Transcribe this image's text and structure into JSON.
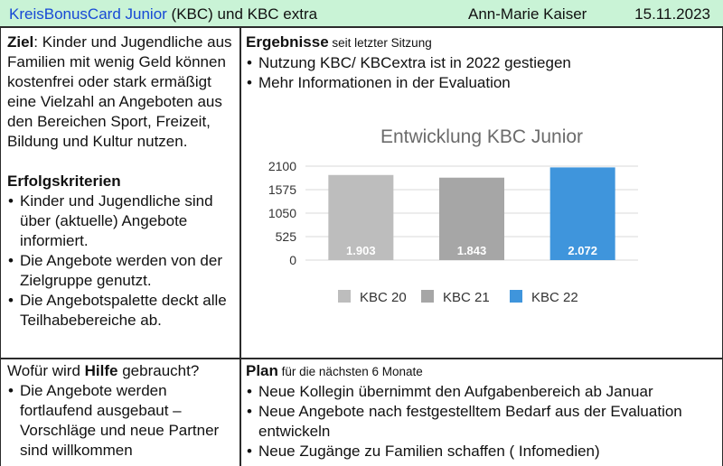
{
  "header": {
    "title_blue": "KreisBonusCard Junior",
    "title_rest": " (KBC) und KBC extra",
    "author": "Ann-Marie Kaiser",
    "date": "15.11.2023"
  },
  "ziel": {
    "label": "Ziel",
    "text": ": Kinder und Jugendliche aus Familien mit wenig Geld können kostenfrei oder stark ermäßigt eine Vielzahl an Angeboten aus den Bereichen Sport, Freizeit, Bildung und Kultur nutzen."
  },
  "erfolg": {
    "heading": "Erfolgskriterien",
    "items": [
      "Kinder und Jugendliche sind über (aktuelle) Angebote informiert.",
      "Die Angebote werden von der Zielgruppe genutzt.",
      "Die Angebotspalette deckt alle Teilhabebereiche ab."
    ]
  },
  "ergebnisse": {
    "heading": "Ergebnisse",
    "sub": " seit letzter Sitzung",
    "items": [
      "Nutzung KBC/ KBCextra ist in 2022 gestiegen",
      "Mehr Informationen in der Evaluation"
    ]
  },
  "hilfe": {
    "pre": "Wofür wird ",
    "bold": "Hilfe",
    "post": " gebraucht?",
    "items": [
      "Die Angebote werden fortlaufend ausgebaut – Vorschläge und neue Partner sind willkommen"
    ]
  },
  "plan": {
    "heading": "Plan",
    "sub": " für die nächsten 6 Monate",
    "items": [
      "Neue Kollegin übernimmt den Aufgabenbereich ab Januar",
      "Neue Angebote nach festgestelltem Bedarf aus der Evaluation entwickeln",
      "Neue Zugänge zu Familien schaffen ( Infomedien)"
    ]
  },
  "chart_data": {
    "type": "bar",
    "title": "Entwicklung KBC Junior",
    "categories": [
      "KBC 20",
      "KBC 21",
      "KBC 22"
    ],
    "values": [
      1903,
      1843,
      2072
    ],
    "value_labels": [
      "1.903",
      "1.843",
      "2.072"
    ],
    "colors": [
      "#bdbdbd",
      "#a6a6a6",
      "#3f95dc"
    ],
    "yticks": [
      0,
      525,
      1050,
      1575,
      2100
    ],
    "ylim": [
      0,
      2100
    ],
    "grid": true,
    "legend_position": "bottom"
  }
}
